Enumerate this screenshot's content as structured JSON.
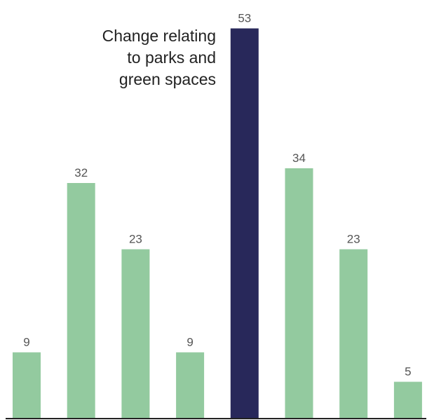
{
  "chart_data": {
    "type": "bar",
    "title": "",
    "xlabel": "",
    "ylabel": "",
    "categories": [
      "",
      "",
      "",
      "",
      "",
      "",
      "",
      ""
    ],
    "values": [
      9,
      32,
      23,
      9,
      53,
      34,
      23,
      5
    ],
    "highlight_index": 4,
    "ylim": [
      0,
      55
    ],
    "grid": false,
    "data_labels": [
      "9",
      "32",
      "23",
      "9",
      "53",
      "34",
      "23",
      "5"
    ],
    "annotation": [
      "Change relating",
      "to parks and",
      "green spaces"
    ],
    "colors": {
      "bar": "#93ca9f",
      "highlight": "#28285a",
      "label": "#555555",
      "axis": "#222222",
      "annotation": "#222222"
    }
  }
}
